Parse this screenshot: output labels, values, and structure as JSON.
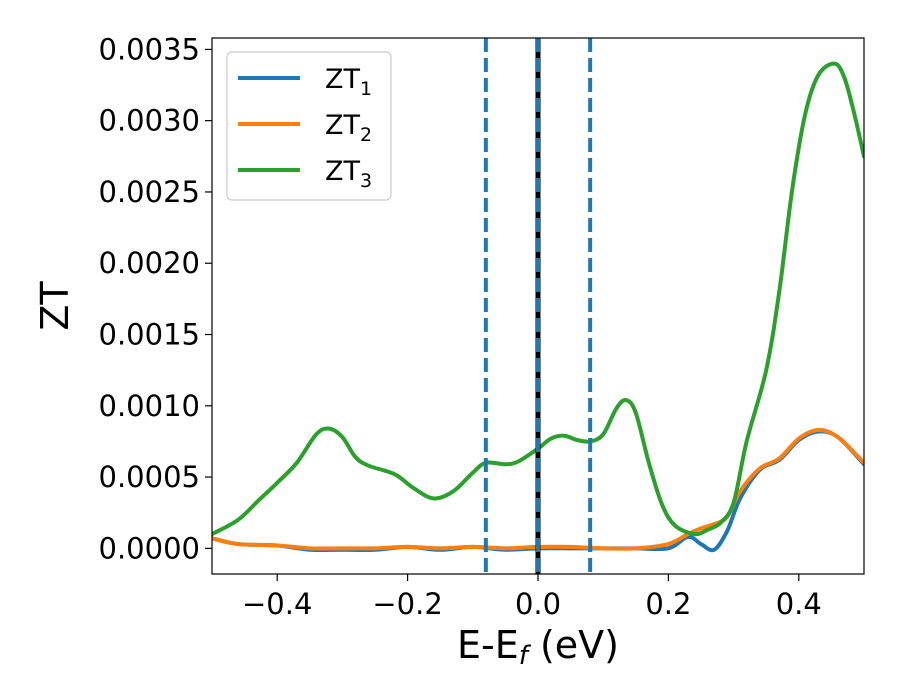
{
  "chart_data": {
    "type": "line",
    "xlabel": "E-E",
    "xlabel_sub": "f",
    "xlabel_unit": " (eV)",
    "ylabel": "ZT",
    "xlim": [
      -0.5,
      0.5
    ],
    "ylim": [
      -0.00018,
      0.00358
    ],
    "xticks": [
      -0.4,
      -0.2,
      0.0,
      0.2,
      0.4
    ],
    "xtick_labels": [
      "−0.4",
      "−0.2",
      "0.0",
      "0.2",
      "0.4"
    ],
    "yticks": [
      0.0,
      0.0005,
      0.001,
      0.0015,
      0.002,
      0.0025,
      0.003,
      0.0035
    ],
    "ytick_labels": [
      "0.0000",
      "0.0005",
      "0.0010",
      "0.0015",
      "0.0020",
      "0.0025",
      "0.0030",
      "0.0035"
    ],
    "grid": false,
    "legend": "top-left",
    "series": [
      {
        "name": "ZT",
        "name_sub": "1",
        "color": "#1f77b4",
        "points": [
          [
            -0.5,
            7e-05
          ],
          [
            -0.46,
            3e-05
          ],
          [
            -0.4,
            2e-05
          ],
          [
            -0.35,
            -1e-05
          ],
          [
            -0.3,
            -1e-05
          ],
          [
            -0.25,
            -1e-05
          ],
          [
            -0.2,
            1e-05
          ],
          [
            -0.15,
            -1e-05
          ],
          [
            -0.1,
            1e-05
          ],
          [
            -0.05,
            -1e-05
          ],
          [
            0.0,
            0.0
          ],
          [
            0.05,
            0.0
          ],
          [
            0.1,
            0.0
          ],
          [
            0.15,
            0.0
          ],
          [
            0.2,
            0.0
          ],
          [
            0.23,
            8e-05
          ],
          [
            0.25,
            3e-05
          ],
          [
            0.27,
            -1e-05
          ],
          [
            0.29,
            0.00012
          ],
          [
            0.31,
            0.00035
          ],
          [
            0.34,
            0.00055
          ],
          [
            0.37,
            0.00062
          ],
          [
            0.4,
            0.00076
          ],
          [
            0.43,
            0.00082
          ],
          [
            0.46,
            0.00078
          ],
          [
            0.5,
            0.00059
          ]
        ]
      },
      {
        "name": "ZT",
        "name_sub": "2",
        "color": "#ff7f0e",
        "points": [
          [
            -0.5,
            7e-05
          ],
          [
            -0.46,
            3e-05
          ],
          [
            -0.4,
            2e-05
          ],
          [
            -0.35,
            0.0
          ],
          [
            -0.3,
            0.0
          ],
          [
            -0.25,
            0.0
          ],
          [
            -0.2,
            1e-05
          ],
          [
            -0.15,
            0.0
          ],
          [
            -0.1,
            1e-05
          ],
          [
            -0.05,
            0.0
          ],
          [
            0.0,
            1e-05
          ],
          [
            0.05,
            1e-05
          ],
          [
            0.1,
            0.0
          ],
          [
            0.15,
            0.0
          ],
          [
            0.2,
            3e-05
          ],
          [
            0.23,
            0.0001
          ],
          [
            0.25,
            0.00014
          ],
          [
            0.27,
            0.00017
          ],
          [
            0.29,
            0.00022
          ],
          [
            0.31,
            0.0004
          ],
          [
            0.34,
            0.00056
          ],
          [
            0.37,
            0.00063
          ],
          [
            0.4,
            0.00077
          ],
          [
            0.43,
            0.00083
          ],
          [
            0.46,
            0.00078
          ],
          [
            0.5,
            0.0006
          ]
        ]
      },
      {
        "name": "ZT",
        "name_sub": "3",
        "color": "#2ca02c",
        "points": [
          [
            -0.5,
            0.0001
          ],
          [
            -0.46,
            0.0002
          ],
          [
            -0.43,
            0.00033
          ],
          [
            -0.4,
            0.00046
          ],
          [
            -0.37,
            0.0006
          ],
          [
            -0.34,
            0.0008
          ],
          [
            -0.32,
            0.00084
          ],
          [
            -0.3,
            0.00078
          ],
          [
            -0.28,
            0.00064
          ],
          [
            -0.26,
            0.00058
          ],
          [
            -0.22,
            0.00052
          ],
          [
            -0.19,
            0.00042
          ],
          [
            -0.16,
            0.00035
          ],
          [
            -0.13,
            0.0004
          ],
          [
            -0.1,
            0.00053
          ],
          [
            -0.08,
            0.0006
          ],
          [
            -0.05,
            0.00059
          ],
          [
            -0.03,
            0.00061
          ],
          [
            0.0,
            0.0007
          ],
          [
            0.02,
            0.00077
          ],
          [
            0.04,
            0.00079
          ],
          [
            0.06,
            0.00076
          ],
          [
            0.08,
            0.00075
          ],
          [
            0.1,
            0.0008
          ],
          [
            0.12,
            0.00098
          ],
          [
            0.135,
            0.00104
          ],
          [
            0.15,
            0.00095
          ],
          [
            0.17,
            0.0006
          ],
          [
            0.19,
            0.00031
          ],
          [
            0.21,
            0.00016
          ],
          [
            0.24,
            0.0001
          ],
          [
            0.26,
            0.00013
          ],
          [
            0.28,
            0.00018
          ],
          [
            0.3,
            0.00032
          ],
          [
            0.32,
            0.00075
          ],
          [
            0.35,
            0.00125
          ],
          [
            0.37,
            0.0018
          ],
          [
            0.39,
            0.00252
          ],
          [
            0.41,
            0.00305
          ],
          [
            0.43,
            0.00332
          ],
          [
            0.455,
            0.0034
          ],
          [
            0.47,
            0.0033
          ],
          [
            0.485,
            0.00305
          ],
          [
            0.5,
            0.00275
          ]
        ]
      }
    ],
    "vlines": [
      {
        "x": -0.08,
        "style": "dashed",
        "color": "#1f77b4"
      },
      {
        "x": 0.0,
        "style": "solid",
        "color": "#000000"
      },
      {
        "x": 0.0,
        "style": "dashed",
        "color": "#1f77b4"
      },
      {
        "x": 0.08,
        "style": "dashed",
        "color": "#1f77b4"
      }
    ]
  }
}
